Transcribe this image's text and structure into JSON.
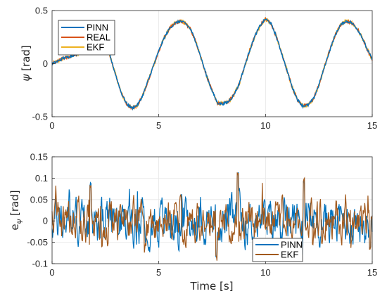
{
  "colors": {
    "PINN": "#0072BD",
    "REAL": "#D95319",
    "EKF": "#EDB120",
    "EKF_error": "#A2591C",
    "grid": "#E6E6E6",
    "axis": "#262626"
  },
  "chart_data": [
    {
      "type": "line",
      "xlabel": "",
      "ylabel_main": "ψ",
      "ylabel_unit": "[rad]",
      "xlim": [
        0,
        15
      ],
      "ylim": [
        -0.5,
        0.5
      ],
      "xticks": [
        0,
        5,
        10,
        15
      ],
      "xtick_labels": [
        "0",
        "5",
        "10",
        "15"
      ],
      "yticks": [
        -0.5,
        0,
        0.5
      ],
      "ytick_labels": [
        "-0.5",
        "0",
        "0.5"
      ],
      "grid": true,
      "legend": "top-left",
      "series_names": [
        "PINN",
        "REAL",
        "EKF"
      ],
      "base_wave_points": [
        [
          0,
          0.0
        ],
        [
          0.25,
          0.02
        ],
        [
          0.5,
          0.05
        ],
        [
          0.75,
          0.06
        ],
        [
          1.0,
          0.08
        ],
        [
          1.25,
          0.1
        ],
        [
          1.5,
          0.15
        ],
        [
          1.75,
          0.25
        ],
        [
          2.0,
          0.35
        ],
        [
          2.25,
          0.34
        ],
        [
          2.5,
          0.2
        ],
        [
          2.75,
          0.05
        ],
        [
          3.0,
          -0.12
        ],
        [
          3.25,
          -0.28
        ],
        [
          3.5,
          -0.38
        ],
        [
          3.75,
          -0.42
        ],
        [
          4.0,
          -0.39
        ],
        [
          4.25,
          -0.3
        ],
        [
          4.5,
          -0.16
        ],
        [
          4.75,
          -0.02
        ],
        [
          5.0,
          0.12
        ],
        [
          5.25,
          0.24
        ],
        [
          5.5,
          0.33
        ],
        [
          5.75,
          0.38
        ],
        [
          6.0,
          0.4
        ],
        [
          6.25,
          0.38
        ],
        [
          6.5,
          0.32
        ],
        [
          6.75,
          0.2
        ],
        [
          7.0,
          0.04
        ],
        [
          7.25,
          -0.12
        ],
        [
          7.5,
          -0.26
        ],
        [
          7.75,
          -0.37
        ],
        [
          8.0,
          -0.38
        ],
        [
          8.25,
          -0.36
        ],
        [
          8.5,
          -0.3
        ],
        [
          8.75,
          -0.2
        ],
        [
          9.0,
          -0.04
        ],
        [
          9.25,
          0.12
        ],
        [
          9.5,
          0.26
        ],
        [
          9.75,
          0.36
        ],
        [
          10.0,
          0.42
        ],
        [
          10.25,
          0.38
        ],
        [
          10.5,
          0.26
        ],
        [
          10.75,
          0.1
        ],
        [
          11.0,
          -0.06
        ],
        [
          11.25,
          -0.22
        ],
        [
          11.5,
          -0.34
        ],
        [
          11.75,
          -0.4
        ],
        [
          12.0,
          -0.39
        ],
        [
          12.25,
          -0.33
        ],
        [
          12.5,
          -0.2
        ],
        [
          12.75,
          -0.04
        ],
        [
          13.0,
          0.12
        ],
        [
          13.25,
          0.26
        ],
        [
          13.5,
          0.36
        ],
        [
          13.75,
          0.4
        ],
        [
          14.0,
          0.39
        ],
        [
          14.25,
          0.34
        ],
        [
          14.5,
          0.26
        ],
        [
          14.75,
          0.14
        ],
        [
          15.0,
          0.04
        ]
      ]
    },
    {
      "type": "line",
      "xlabel": "Time [s]",
      "ylabel_main": "e",
      "ylabel_sub": "ψ",
      "ylabel_unit": "[rad]",
      "xlim": [
        0,
        15
      ],
      "ylim": [
        -0.1,
        0.15
      ],
      "xticks": [
        0,
        5,
        10,
        15
      ],
      "xtick_labels": [
        "0",
        "5",
        "10",
        "15"
      ],
      "yticks": [
        -0.1,
        -0.05,
        0,
        0.05,
        0.1,
        0.15
      ],
      "ytick_labels": [
        "-0.1",
        "-0.05",
        "0",
        "0.05",
        "0.1",
        "0.15"
      ],
      "grid": true,
      "legend": "bottom-right",
      "series_names": [
        "PINN",
        "EKF"
      ],
      "noise_amplitude_approx": 0.05,
      "notable_peaks": [
        [
          1.8,
          0.09
        ],
        [
          7.7,
          -0.095
        ],
        [
          8.7,
          0.115
        ],
        [
          11.8,
          0.1
        ],
        [
          14.9,
          -0.07
        ]
      ]
    }
  ]
}
